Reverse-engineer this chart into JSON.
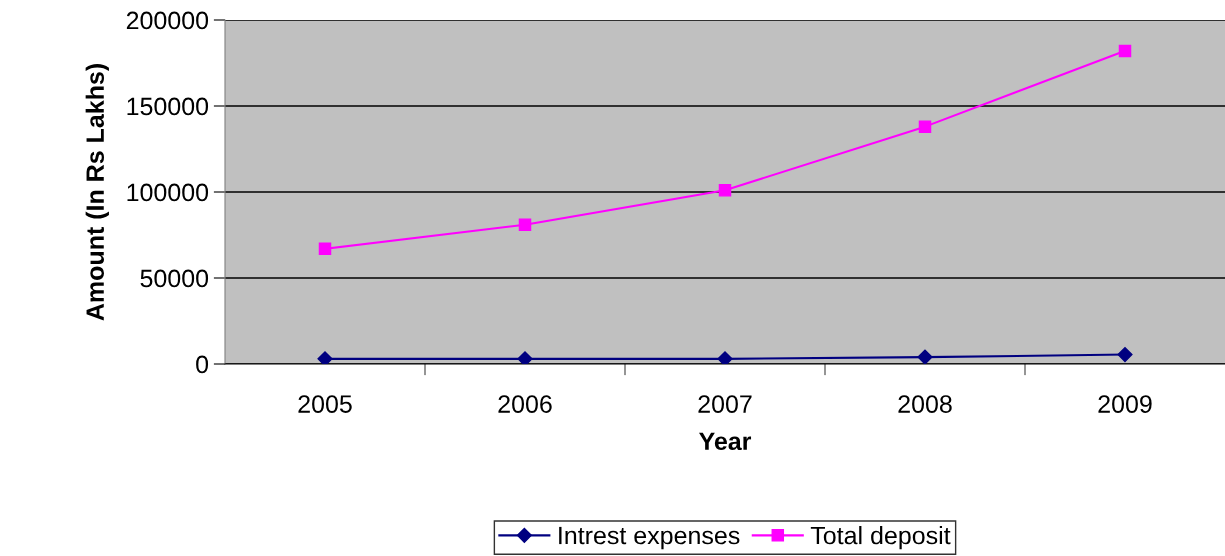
{
  "chart_data": {
    "type": "line",
    "xlabel": "Year",
    "ylabel": "Amount (In Rs Lakhs)",
    "categories": [
      "2005",
      "2006",
      "2007",
      "2008",
      "2009"
    ],
    "series": [
      {
        "name": "Intrest expenses",
        "color": "#000080",
        "marker": "diamond",
        "values": [
          3000,
          3000,
          3000,
          4000,
          5500
        ]
      },
      {
        "name": "Total deposit",
        "color": "#ff00ff",
        "marker": "square",
        "values": [
          67000,
          81000,
          101000,
          138000,
          182000
        ]
      }
    ],
    "ylim": [
      0,
      200000
    ],
    "yticks": [
      0,
      50000,
      100000,
      150000,
      200000
    ],
    "grid": "y",
    "legend": "bottom"
  }
}
